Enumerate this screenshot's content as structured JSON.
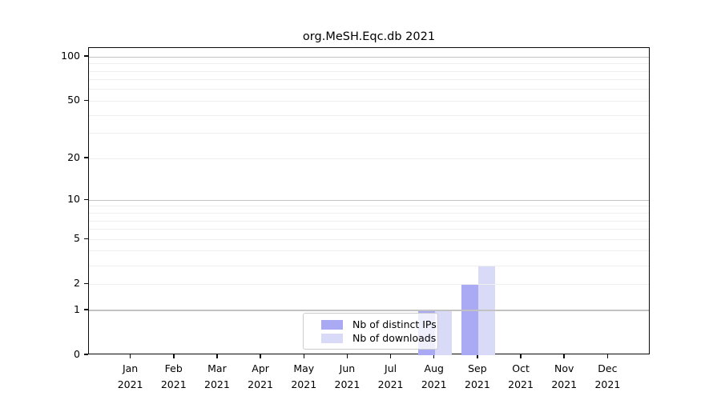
{
  "chart_data": {
    "type": "bar",
    "title": "org.MeSH.Eqc.db 2021",
    "categories": [
      "Jan 2021",
      "Feb 2021",
      "Mar 2021",
      "Apr 2021",
      "May 2021",
      "Jun 2021",
      "Jul 2021",
      "Aug 2021",
      "Sep 2021",
      "Oct 2021",
      "Nov 2021",
      "Dec 2021"
    ],
    "series": [
      {
        "name": "Nb of distinct IPs",
        "color": "#a9a9f4",
        "values": [
          0,
          0,
          0,
          0,
          0,
          0,
          0,
          1,
          2,
          0,
          0,
          0
        ]
      },
      {
        "name": "Nb of downloads",
        "color": "#d9d9f8",
        "values": [
          0,
          0,
          0,
          0,
          0,
          0,
          0,
          1,
          3,
          0,
          0,
          0
        ]
      }
    ],
    "xlabel": "",
    "ylabel": "",
    "ylim": [
      0,
      115
    ],
    "y_scale": "log1p",
    "y_ticks": [
      0,
      1,
      2,
      5,
      10,
      20,
      50,
      100
    ],
    "grid": {
      "on": true,
      "major_values": [
        1,
        10,
        100
      ],
      "minor_values": [
        2,
        3,
        4,
        5,
        6,
        7,
        8,
        9,
        20,
        30,
        40,
        50,
        60,
        70,
        80,
        90
      ],
      "major_color": "#c2c2c2",
      "minor_color": "#efefef"
    },
    "legend_position": "inside-bottom-center",
    "axis_color": "#0a0a0a"
  }
}
